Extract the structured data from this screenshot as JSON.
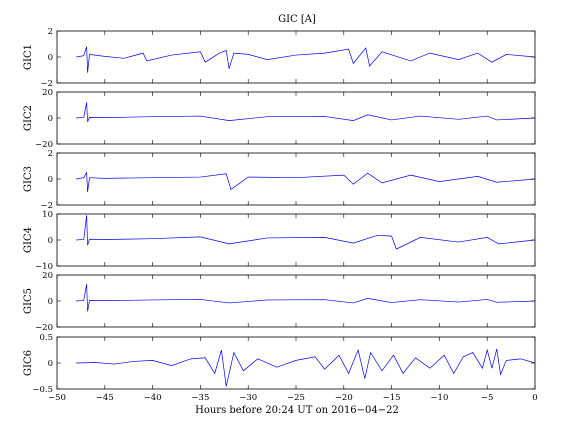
{
  "chart_data": {
    "type": "line",
    "title": "GIC [A]",
    "xlabel": "Hours before  20:24 UT on 2016−04−22",
    "xlim": [
      -50,
      0
    ],
    "xticks": [
      -50,
      -45,
      -40,
      -35,
      -30,
      -25,
      -20,
      -15,
      -10,
      -5,
      0
    ],
    "xtick_labels": [
      "−50",
      "−45",
      "−40",
      "−35",
      "−30",
      "−25",
      "−20",
      "−15",
      "−10",
      "−5",
      "0"
    ],
    "grid": false,
    "line_color": "#0000ee",
    "panels": [
      {
        "ylabel": "GIC1",
        "ylim": [
          -2,
          2
        ],
        "yticks": [
          -2,
          0,
          2
        ],
        "ytick_labels": [
          "−2",
          "0",
          "2"
        ],
        "series": [
          {
            "x": -48,
            "y": 0
          },
          {
            "x": -47.2,
            "y": 0.1
          },
          {
            "x": -46.9,
            "y": 0.8
          },
          {
            "x": -46.8,
            "y": -1.2
          },
          {
            "x": -46.6,
            "y": 0.2
          },
          {
            "x": -45,
            "y": 0.05
          },
          {
            "x": -43,
            "y": -0.1
          },
          {
            "x": -41,
            "y": 0.3
          },
          {
            "x": -40.6,
            "y": -0.3
          },
          {
            "x": -38,
            "y": 0.15
          },
          {
            "x": -35,
            "y": 0.4
          },
          {
            "x": -34.5,
            "y": -0.4
          },
          {
            "x": -33,
            "y": 0.3
          },
          {
            "x": -32.3,
            "y": 0.5
          },
          {
            "x": -32,
            "y": -0.9
          },
          {
            "x": -31.5,
            "y": 0.3
          },
          {
            "x": -30,
            "y": 0.2
          },
          {
            "x": -28,
            "y": -0.2
          },
          {
            "x": -25,
            "y": 0.15
          },
          {
            "x": -22,
            "y": 0.3
          },
          {
            "x": -19.5,
            "y": 0.6
          },
          {
            "x": -19,
            "y": -0.5
          },
          {
            "x": -17.7,
            "y": 0.7
          },
          {
            "x": -17.3,
            "y": -0.7
          },
          {
            "x": -16,
            "y": 0.4
          },
          {
            "x": -13,
            "y": -0.3
          },
          {
            "x": -11,
            "y": 0.3
          },
          {
            "x": -8,
            "y": -0.2
          },
          {
            "x": -6,
            "y": 0.3
          },
          {
            "x": -4.5,
            "y": -0.4
          },
          {
            "x": -3,
            "y": 0.2
          },
          {
            "x": 0,
            "y": 0
          }
        ]
      },
      {
        "ylabel": "GIC2",
        "ylim": [
          -20,
          20
        ],
        "yticks": [
          -20,
          0,
          20
        ],
        "ytick_labels": [
          "−20",
          "0",
          "20"
        ],
        "series": [
          {
            "x": -48,
            "y": 0
          },
          {
            "x": -47.2,
            "y": 0.5
          },
          {
            "x": -46.9,
            "y": 12
          },
          {
            "x": -46.8,
            "y": -3
          },
          {
            "x": -46.6,
            "y": 0.5
          },
          {
            "x": -45,
            "y": 0.3
          },
          {
            "x": -40,
            "y": 1
          },
          {
            "x": -35,
            "y": 1.5
          },
          {
            "x": -32,
            "y": -2
          },
          {
            "x": -28,
            "y": 1
          },
          {
            "x": -22,
            "y": 1.2
          },
          {
            "x": -19,
            "y": -2
          },
          {
            "x": -17.5,
            "y": 2.5
          },
          {
            "x": -15,
            "y": -1.5
          },
          {
            "x": -12,
            "y": 1.5
          },
          {
            "x": -8,
            "y": -1
          },
          {
            "x": -5,
            "y": 1.5
          },
          {
            "x": -4,
            "y": -1.5
          },
          {
            "x": 0,
            "y": 0
          }
        ]
      },
      {
        "ylabel": "GIC3",
        "ylim": [
          -2,
          2
        ],
        "yticks": [
          -2,
          0,
          2
        ],
        "ytick_labels": [
          "−2",
          "0",
          "2"
        ],
        "series": [
          {
            "x": -48,
            "y": 0
          },
          {
            "x": -47.2,
            "y": 0.1
          },
          {
            "x": -46.9,
            "y": 0.5
          },
          {
            "x": -46.8,
            "y": -1.0
          },
          {
            "x": -46.6,
            "y": 0.1
          },
          {
            "x": -45,
            "y": 0.05
          },
          {
            "x": -40,
            "y": 0.1
          },
          {
            "x": -35,
            "y": 0.15
          },
          {
            "x": -32.3,
            "y": 0.4
          },
          {
            "x": -31.8,
            "y": -0.8
          },
          {
            "x": -30,
            "y": 0.15
          },
          {
            "x": -25,
            "y": 0.1
          },
          {
            "x": -20,
            "y": 0.3
          },
          {
            "x": -19,
            "y": -0.4
          },
          {
            "x": -17.5,
            "y": 0.45
          },
          {
            "x": -16,
            "y": -0.3
          },
          {
            "x": -13,
            "y": 0.3
          },
          {
            "x": -10,
            "y": -0.2
          },
          {
            "x": -6,
            "y": 0.2
          },
          {
            "x": -4,
            "y": -0.25
          },
          {
            "x": 0,
            "y": 0
          }
        ]
      },
      {
        "ylabel": "GIC4",
        "ylim": [
          -10,
          10
        ],
        "yticks": [
          -10,
          0,
          10
        ],
        "ytick_labels": [
          "−10",
          "0",
          "10"
        ],
        "series": [
          {
            "x": -48,
            "y": 0
          },
          {
            "x": -47.2,
            "y": 0.2
          },
          {
            "x": -46.9,
            "y": 9.5
          },
          {
            "x": -46.8,
            "y": -2
          },
          {
            "x": -46.6,
            "y": 0.3
          },
          {
            "x": -45,
            "y": 0.2
          },
          {
            "x": -40,
            "y": 0.5
          },
          {
            "x": -35,
            "y": 1.2
          },
          {
            "x": -32,
            "y": -1.5
          },
          {
            "x": -28,
            "y": 0.8
          },
          {
            "x": -22,
            "y": 1
          },
          {
            "x": -19,
            "y": -1.2
          },
          {
            "x": -16.5,
            "y": 1.8
          },
          {
            "x": -15,
            "y": 1.5
          },
          {
            "x": -14.5,
            "y": -3.5
          },
          {
            "x": -12,
            "y": 1
          },
          {
            "x": -8,
            "y": -0.8
          },
          {
            "x": -5,
            "y": 1
          },
          {
            "x": -3.8,
            "y": -1.5
          },
          {
            "x": 0,
            "y": 0
          }
        ]
      },
      {
        "ylabel": "GIC5",
        "ylim": [
          -20,
          20
        ],
        "yticks": [
          -20,
          0,
          20
        ],
        "ytick_labels": [
          "−20",
          "0",
          "20"
        ],
        "series": [
          {
            "x": -48,
            "y": 0
          },
          {
            "x": -47.2,
            "y": 0.5
          },
          {
            "x": -46.9,
            "y": 13
          },
          {
            "x": -46.8,
            "y": -8
          },
          {
            "x": -46.6,
            "y": 0.5
          },
          {
            "x": -45,
            "y": 0.3
          },
          {
            "x": -40,
            "y": 0.8
          },
          {
            "x": -35,
            "y": 1.2
          },
          {
            "x": -32,
            "y": -1.5
          },
          {
            "x": -28,
            "y": 0.8
          },
          {
            "x": -22,
            "y": 1
          },
          {
            "x": -19,
            "y": -1.5
          },
          {
            "x": -17.5,
            "y": 2
          },
          {
            "x": -15,
            "y": -1.2
          },
          {
            "x": -12,
            "y": 1
          },
          {
            "x": -8,
            "y": -0.8
          },
          {
            "x": -5,
            "y": 1.2
          },
          {
            "x": -4,
            "y": -1
          },
          {
            "x": 0,
            "y": 0
          }
        ]
      },
      {
        "ylabel": "GIC6",
        "ylim": [
          -0.5,
          0.5
        ],
        "yticks": [
          -0.5,
          0,
          0.5
        ],
        "ytick_labels": [
          "−0.5",
          "0",
          "0.5"
        ],
        "series": [
          {
            "x": -48,
            "y": 0
          },
          {
            "x": -46,
            "y": 0.01
          },
          {
            "x": -44,
            "y": -0.02
          },
          {
            "x": -42,
            "y": 0.03
          },
          {
            "x": -40,
            "y": 0.05
          },
          {
            "x": -38,
            "y": -0.05
          },
          {
            "x": -36,
            "y": 0.08
          },
          {
            "x": -34.5,
            "y": 0.1
          },
          {
            "x": -33.5,
            "y": -0.2
          },
          {
            "x": -32.8,
            "y": 0.25
          },
          {
            "x": -32.3,
            "y": -0.45
          },
          {
            "x": -31.5,
            "y": 0.2
          },
          {
            "x": -30.5,
            "y": -0.15
          },
          {
            "x": -29,
            "y": 0.08
          },
          {
            "x": -27,
            "y": -0.08
          },
          {
            "x": -25,
            "y": 0.05
          },
          {
            "x": -23,
            "y": 0.12
          },
          {
            "x": -22,
            "y": -0.12
          },
          {
            "x": -20.5,
            "y": 0.15
          },
          {
            "x": -19.5,
            "y": -0.2
          },
          {
            "x": -18.5,
            "y": 0.25
          },
          {
            "x": -17.8,
            "y": -0.3
          },
          {
            "x": -17.2,
            "y": 0.2
          },
          {
            "x": -16,
            "y": -0.15
          },
          {
            "x": -14.8,
            "y": 0.15
          },
          {
            "x": -13.8,
            "y": -0.2
          },
          {
            "x": -12.5,
            "y": 0.1
          },
          {
            "x": -11,
            "y": -0.1
          },
          {
            "x": -9.5,
            "y": 0.15
          },
          {
            "x": -8.5,
            "y": -0.2
          },
          {
            "x": -7.5,
            "y": 0.12
          },
          {
            "x": -6.5,
            "y": 0.2
          },
          {
            "x": -5.5,
            "y": -0.1
          },
          {
            "x": -5,
            "y": 0.25
          },
          {
            "x": -4.5,
            "y": -0.1
          },
          {
            "x": -4,
            "y": 0.27
          },
          {
            "x": -3.6,
            "y": -0.22
          },
          {
            "x": -3,
            "y": 0.05
          },
          {
            "x": -1.5,
            "y": 0.08
          },
          {
            "x": 0,
            "y": 0
          }
        ]
      }
    ]
  }
}
